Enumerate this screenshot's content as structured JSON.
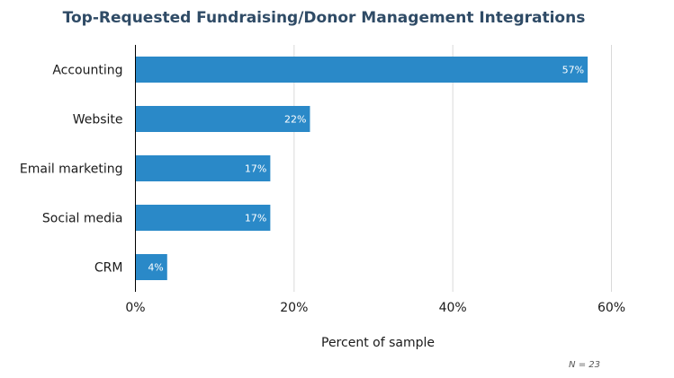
{
  "chart_data": {
    "type": "bar",
    "orientation": "horizontal",
    "title": "Top-Requested Fundraising/Donor Management Integrations",
    "categories": [
      "Accounting",
      "Website",
      "Email marketing",
      "Social media",
      "CRM"
    ],
    "values": [
      57,
      22,
      17,
      17,
      4
    ],
    "data_labels": [
      "57%",
      "22%",
      "17%",
      "17%",
      "4%"
    ],
    "xlabel": "Percent of sample",
    "ylabel": "",
    "xlim": [
      0,
      60
    ],
    "xticks": [
      0,
      20,
      40,
      60
    ],
    "xtick_labels": [
      "0%",
      "20%",
      "40%",
      "60%"
    ],
    "grid": "vertical",
    "bar_color": "#2a89c8",
    "note": "N = 23"
  }
}
